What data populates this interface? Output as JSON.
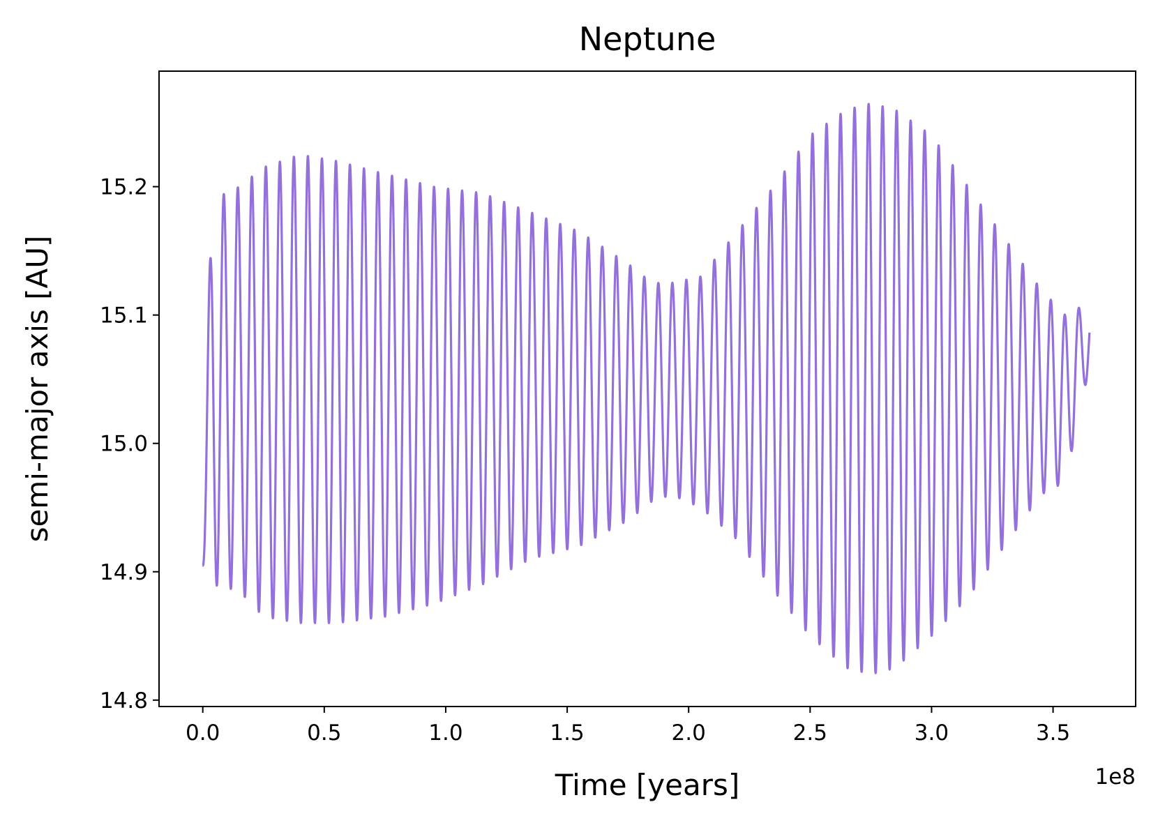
{
  "chart_data": {
    "type": "line",
    "title": "Neptune",
    "xlabel": "Time [years]",
    "ylabel": "semi-major axis [AU]",
    "x_offset_label": "1e8",
    "xlim": [
      -0.18,
      3.84
    ],
    "ylim": [
      14.795,
      15.29
    ],
    "xticks": [
      0.0,
      0.5,
      1.0,
      1.5,
      2.0,
      2.5,
      3.0,
      3.5
    ],
    "xtick_labels": [
      "0.0",
      "0.5",
      "1.0",
      "1.5",
      "2.0",
      "2.5",
      "3.0",
      "3.5"
    ],
    "yticks": [
      14.8,
      14.9,
      15.0,
      15.1,
      15.2
    ],
    "ytick_labels": [
      "14.8",
      "14.9",
      "15.0",
      "15.1",
      "15.2"
    ],
    "grid": false,
    "legend": "none",
    "line_color": "#9370db",
    "series": [
      {
        "x_start": 0.0,
        "x_end": 3.65,
        "oscillation_period": 0.0577,
        "envelope": [
          {
            "x": 0.0,
            "max": 15.0,
            "min": 14.905
          },
          {
            "x": 0.04,
            "max": 15.19,
            "min": 14.89
          },
          {
            "x": 0.15,
            "max": 15.2,
            "min": 14.885
          },
          {
            "x": 0.25,
            "max": 15.215,
            "min": 14.865
          },
          {
            "x": 0.4,
            "max": 15.225,
            "min": 14.86
          },
          {
            "x": 0.55,
            "max": 15.22,
            "min": 14.86
          },
          {
            "x": 0.75,
            "max": 15.21,
            "min": 14.865
          },
          {
            "x": 0.95,
            "max": 15.2,
            "min": 14.875
          },
          {
            "x": 1.15,
            "max": 15.195,
            "min": 14.89
          },
          {
            "x": 1.35,
            "max": 15.18,
            "min": 14.91
          },
          {
            "x": 1.55,
            "max": 15.165,
            "min": 14.92
          },
          {
            "x": 1.75,
            "max": 15.14,
            "min": 14.94
          },
          {
            "x": 1.85,
            "max": 15.125,
            "min": 14.955
          },
          {
            "x": 1.93,
            "max": 15.125,
            "min": 14.96
          },
          {
            "x": 2.05,
            "max": 15.13,
            "min": 14.95
          },
          {
            "x": 2.2,
            "max": 15.165,
            "min": 14.925
          },
          {
            "x": 2.35,
            "max": 15.2,
            "min": 14.885
          },
          {
            "x": 2.5,
            "max": 15.24,
            "min": 14.85
          },
          {
            "x": 2.65,
            "max": 15.26,
            "min": 14.825
          },
          {
            "x": 2.75,
            "max": 15.265,
            "min": 14.82
          },
          {
            "x": 2.85,
            "max": 15.26,
            "min": 14.825
          },
          {
            "x": 3.0,
            "max": 15.24,
            "min": 14.85
          },
          {
            "x": 3.15,
            "max": 15.2,
            "min": 14.88
          },
          {
            "x": 3.3,
            "max": 15.16,
            "min": 14.92
          },
          {
            "x": 3.45,
            "max": 15.12,
            "min": 14.96
          },
          {
            "x": 3.55,
            "max": 15.1,
            "min": 14.97
          },
          {
            "x": 3.65,
            "max": 15.11,
            "min": 15.06
          }
        ]
      }
    ]
  }
}
